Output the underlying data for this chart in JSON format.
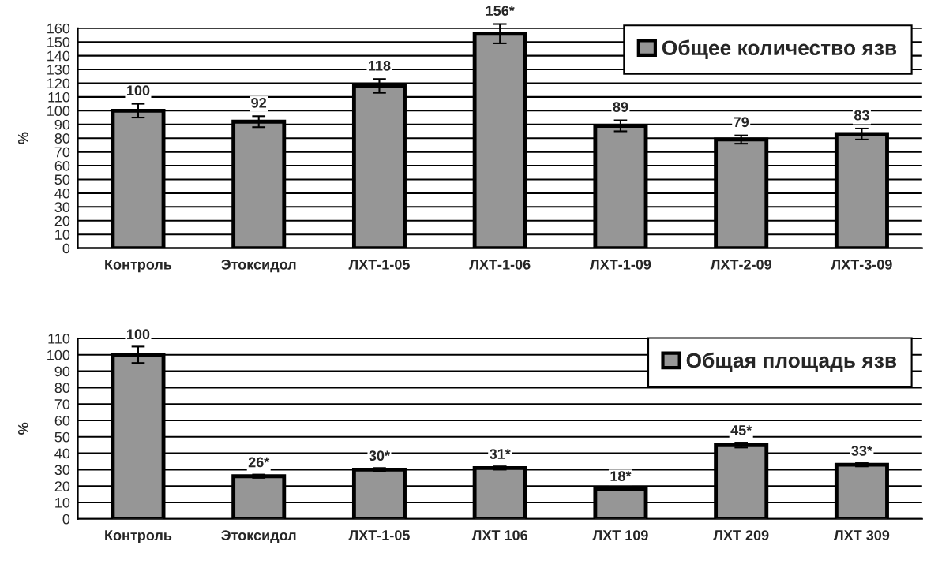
{
  "chart_data": [
    {
      "type": "bar",
      "ylabel": "%",
      "categories": [
        "Контроль",
        "Этоксидол",
        "ЛХТ-1-05",
        "ЛХТ-1-06",
        "ЛХТ-1-09",
        "ЛХТ-2-09",
        "ЛХТ-3-09"
      ],
      "series": [
        {
          "name": "Общее количество язв",
          "color": "#969696",
          "values": [
            100,
            92,
            118,
            156,
            89,
            79,
            83
          ],
          "errors": [
            5,
            4,
            5,
            7,
            4,
            3,
            4
          ],
          "value_labels": [
            "100",
            "92",
            "118",
            "156*",
            "89",
            "79",
            "83"
          ]
        }
      ],
      "ylim": [
        0,
        160
      ],
      "yticks": [
        0,
        10,
        20,
        30,
        40,
        50,
        60,
        70,
        80,
        90,
        100,
        110,
        120,
        130,
        140,
        150,
        160
      ],
      "grid": "y",
      "legend": "top right"
    },
    {
      "type": "bar",
      "ylabel": "%",
      "categories": [
        "Контроль",
        "Этоксидол",
        "ЛХТ-1-05",
        "ЛХТ 106",
        "ЛХТ 109",
        "ЛХТ 209",
        "ЛХТ 309"
      ],
      "series": [
        {
          "name": "Общая площадь язв",
          "color": "#969696",
          "values": [
            100,
            26,
            30,
            31,
            18,
            45,
            33
          ],
          "errors": [
            5,
            1,
            1,
            1,
            0.5,
            1.5,
            1
          ],
          "value_labels": [
            "100",
            "26*",
            "30*",
            "31*",
            "18*",
            "45*",
            "33*"
          ]
        }
      ],
      "ylim": [
        0,
        110
      ],
      "yticks": [
        0,
        10,
        20,
        30,
        40,
        50,
        60,
        70,
        80,
        90,
        100,
        110
      ],
      "grid": "y",
      "legend": "top right"
    }
  ]
}
